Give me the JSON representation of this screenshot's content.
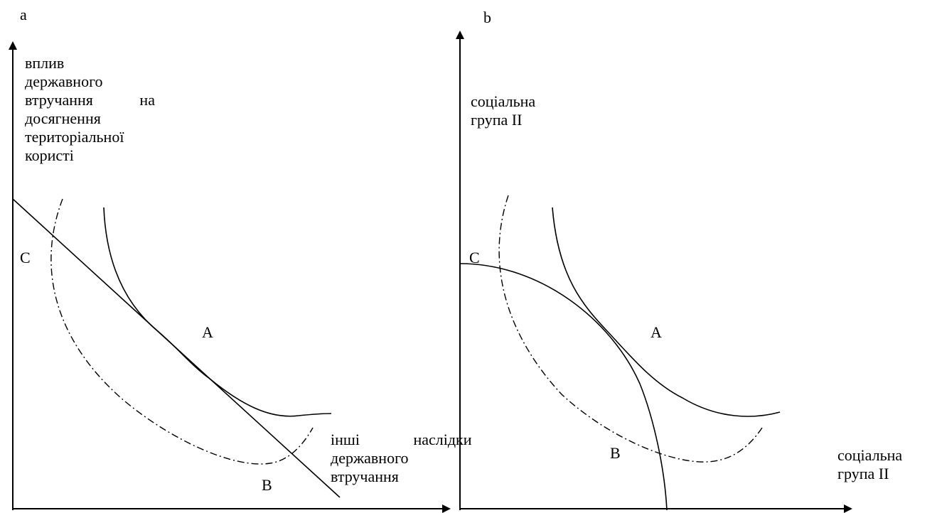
{
  "panel_a": {
    "letter": "a",
    "y_axis_label": [
      "вплив",
      "державного",
      "втручання на",
      "досягнення",
      "територіальної",
      "користі"
    ],
    "x_axis_label": [
      "інші наслідки",
      "державного",
      "втручання"
    ],
    "point_labels": {
      "a": "A",
      "b": "B",
      "c": "C"
    }
  },
  "panel_b": {
    "letter": "b",
    "y_axis_label": [
      "соціальна",
      "група ІІ"
    ],
    "x_axis_label": [
      "соціальна",
      "група ІІ"
    ],
    "point_labels": {
      "a": "A",
      "b": "B",
      "c": "C"
    }
  }
}
